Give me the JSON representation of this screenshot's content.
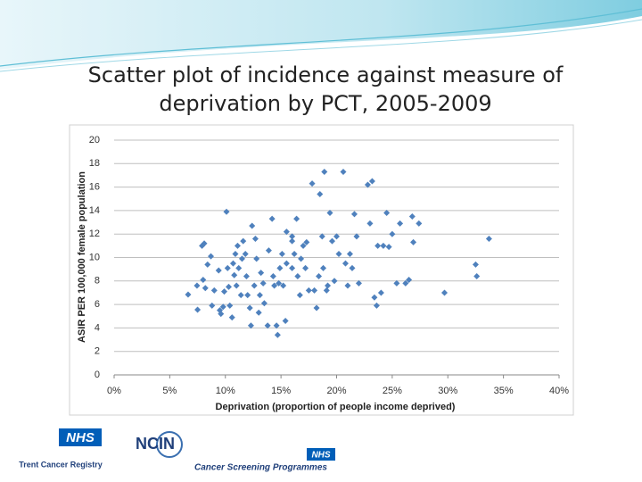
{
  "chart_data": {
    "type": "scatter",
    "title": "Scatter plot of incidence against measure of deprivation by PCT, 2005-2009",
    "xlabel": "Deprivation (proportion of people income deprived)",
    "ylabel": "ASIR PER 100,000 female population",
    "color": "#4f81bd",
    "grid": true,
    "xlim": [
      0,
      40
    ],
    "ylim": [
      0,
      20
    ],
    "xticks": [
      {
        "value": 0,
        "label": "0%"
      },
      {
        "value": 5,
        "label": "5%"
      },
      {
        "value": 10,
        "label": "10%"
      },
      {
        "value": 15,
        "label": "15%"
      },
      {
        "value": 20,
        "label": "20%"
      },
      {
        "value": 25,
        "label": "25%"
      },
      {
        "value": 30,
        "label": "30%"
      },
      {
        "value": 35,
        "label": "35%"
      },
      {
        "value": 40,
        "label": "40%"
      }
    ],
    "yticks": [
      0,
      2,
      4,
      6,
      8,
      10,
      12,
      14,
      16,
      18,
      20
    ],
    "x": [
      6.65,
      7.45,
      7.5,
      7.9,
      8.1,
      8.0,
      8.2,
      8.4,
      8.7,
      8.8,
      9.0,
      9.4,
      9.5,
      9.6,
      9.8,
      9.9,
      10.1,
      10.2,
      10.3,
      10.4,
      10.6,
      10.7,
      10.8,
      10.9,
      11.0,
      11.1,
      11.2,
      11.4,
      11.5,
      11.6,
      11.8,
      11.9,
      12.0,
      12.2,
      12.3,
      12.4,
      12.6,
      12.7,
      12.8,
      13.0,
      13.1,
      13.2,
      13.4,
      13.5,
      13.8,
      13.9,
      14.2,
      14.3,
      14.4,
      14.6,
      14.7,
      14.8,
      14.9,
      15.1,
      15.2,
      15.4,
      15.5,
      15.5,
      16.0,
      16.0,
      16.0,
      16.2,
      16.4,
      16.5,
      16.7,
      16.8,
      17.0,
      17.2,
      17.3,
      17.5,
      17.8,
      18.0,
      18.2,
      18.4,
      18.5,
      18.7,
      18.8,
      18.9,
      19.1,
      19.2,
      19.4,
      19.6,
      19.8,
      20.0,
      20.2,
      20.6,
      20.8,
      21.0,
      21.2,
      21.4,
      21.6,
      21.8,
      22.0,
      22.8,
      23.2,
      23.0,
      23.4,
      23.6,
      23.7,
      24.0,
      24.2,
      24.5,
      24.7,
      25.0,
      25.4,
      25.7,
      26.2,
      26.5,
      26.8,
      26.9,
      27.4,
      29.7,
      32.5,
      32.6,
      33.7
    ],
    "y": [
      6.84,
      7.6,
      5.55,
      11.0,
      11.2,
      8.1,
      7.4,
      9.4,
      10.1,
      5.9,
      7.2,
      8.9,
      5.5,
      5.2,
      5.8,
      7.1,
      13.9,
      9.1,
      7.5,
      5.9,
      4.9,
      9.5,
      8.5,
      10.3,
      7.6,
      11.0,
      9.1,
      6.8,
      9.9,
      11.4,
      10.3,
      8.4,
      6.8,
      5.7,
      4.2,
      12.7,
      7.6,
      11.6,
      9.9,
      5.3,
      6.8,
      8.7,
      7.8,
      6.1,
      4.2,
      10.6,
      13.3,
      8.4,
      7.6,
      4.2,
      3.4,
      7.8,
      9.1,
      10.3,
      7.6,
      4.6,
      12.2,
      9.5,
      11.4,
      9.1,
      11.8,
      10.3,
      13.3,
      8.4,
      6.8,
      9.9,
      11.0,
      9.1,
      11.3,
      7.2,
      16.3,
      7.2,
      5.7,
      8.4,
      15.4,
      11.8,
      9.1,
      17.3,
      7.2,
      7.6,
      13.8,
      11.4,
      8.0,
      11.8,
      10.3,
      17.3,
      9.5,
      7.6,
      10.3,
      9.1,
      13.7,
      11.8,
      7.8,
      16.2,
      16.5,
      12.9,
      6.6,
      5.9,
      11.0,
      7.0,
      11.0,
      13.8,
      10.9,
      12.0,
      7.8,
      12.9,
      7.8,
      8.1,
      13.5,
      11.3,
      12.9,
      7.0,
      9.4,
      8.4,
      11.6
    ]
  },
  "logos": [
    "NHS",
    "Trent Cancer Registry",
    "NCIN",
    "Cancer Screening Programmes"
  ]
}
